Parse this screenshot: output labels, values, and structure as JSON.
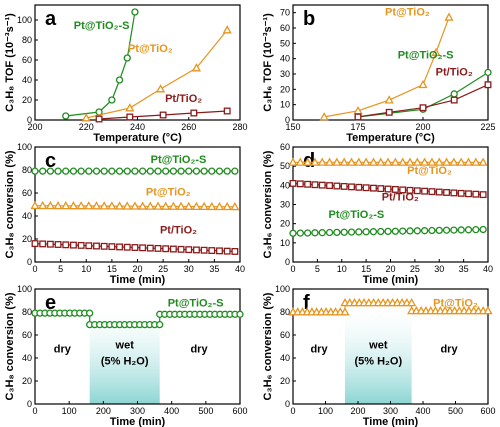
{
  "chart_data": [
    {
      "id": "a",
      "type": "line",
      "letter": "a",
      "xlabel": "Temperature (°C)",
      "ylabel": "C₃H₈ TOF (10⁻³s⁻¹)",
      "xlim": [
        200,
        280
      ],
      "ylim": [
        0,
        115
      ],
      "xticks": [
        200,
        220,
        240,
        260,
        280
      ],
      "yticks": [
        0,
        20,
        40,
        60,
        80,
        100
      ],
      "series": [
        {
          "name": "Pt@TiO₂-S",
          "color": "#1e8c1e",
          "marker": "circle",
          "x": [
            212,
            225,
            230,
            233,
            236,
            239
          ],
          "y": [
            4,
            8,
            20,
            40,
            62,
            108
          ]
        },
        {
          "name": "Pt@TiO₂",
          "color": "#e69520",
          "marker": "triangle",
          "x": [
            220,
            237,
            249,
            263,
            275
          ],
          "y": [
            2,
            12,
            31,
            52,
            90
          ]
        },
        {
          "name": "Pt/TiO₂",
          "color": "#8b1a1a",
          "marker": "square",
          "x": [
            225,
            237,
            250,
            262,
            275
          ],
          "y": [
            1,
            3,
            5,
            7,
            9
          ]
        }
      ],
      "labels": [
        "Pt@TiO₂-S",
        "Pt@TiO₂",
        "Pt/TiO₂"
      ]
    },
    {
      "id": "b",
      "type": "line",
      "letter": "b",
      "xlabel": "Temperature (°C)",
      "ylabel": "C₃H₆ TOF (10⁻³s⁻¹)",
      "xlim": [
        150,
        225
      ],
      "ylim": [
        0,
        75
      ],
      "xticks": [
        150,
        175,
        200,
        225
      ],
      "yticks": [
        0,
        10,
        20,
        30,
        40,
        50,
        60,
        70
      ],
      "series": [
        {
          "name": "Pt@TiO₂",
          "color": "#e69520",
          "marker": "triangle",
          "x": [
            162,
            175,
            187,
            200,
            205,
            210
          ],
          "y": [
            2,
            6,
            13,
            23,
            44,
            67
          ]
        },
        {
          "name": "Pt@TiO₂-S",
          "color": "#1e8c1e",
          "marker": "circle",
          "x": [
            175,
            200,
            212,
            225
          ],
          "y": [
            2,
            7,
            17,
            31
          ]
        },
        {
          "name": "Pt/TiO₂",
          "color": "#8b1a1a",
          "marker": "square",
          "x": [
            175,
            187,
            200,
            212,
            225
          ],
          "y": [
            2,
            5,
            8,
            13,
            23
          ]
        }
      ],
      "labels": [
        "Pt@TiO₂",
        "Pt@TiO₂-S",
        "Pt/TiO₂"
      ]
    },
    {
      "id": "c",
      "type": "line",
      "letter": "c",
      "xlabel": "Time (min)",
      "ylabel": "C₃H₈ conversion (%)",
      "xlim": [
        0,
        40
      ],
      "ylim": [
        0,
        100
      ],
      "xticks": [
        0,
        5,
        10,
        15,
        20,
        25,
        30,
        35,
        40
      ],
      "yticks": [
        0,
        20,
        40,
        60,
        80,
        100
      ],
      "series": [
        {
          "name": "Pt@TiO₂-S",
          "color": "#1e8c1e",
          "marker": "circle",
          "start": 79,
          "end": 79
        },
        {
          "name": "Pt@TiO₂",
          "color": "#e69520",
          "marker": "triangle",
          "start": 49,
          "end": 48
        },
        {
          "name": "Pt/TiO₂",
          "color": "#8b1a1a",
          "marker": "square",
          "start": 16,
          "end": 9
        }
      ],
      "labels": [
        "Pt@TiO₂-S",
        "Pt@TiO₂",
        "Pt/TiO₂"
      ]
    },
    {
      "id": "d",
      "type": "line",
      "letter": "d",
      "xlabel": "Time (min)",
      "ylabel": "C₃H₆ conversion (%)",
      "xlim": [
        0,
        40
      ],
      "ylim": [
        0,
        60
      ],
      "xticks": [
        0,
        5,
        10,
        15,
        20,
        25,
        30,
        35,
        40
      ],
      "yticks": [
        0,
        10,
        20,
        30,
        40,
        50,
        60
      ],
      "series": [
        {
          "name": "Pt@TiO₂",
          "color": "#e69520",
          "marker": "triangle",
          "start": 52,
          "end": 52
        },
        {
          "name": "Pt/TiO₂",
          "color": "#8b1a1a",
          "marker": "square",
          "start": 41,
          "end": 35
        },
        {
          "name": "Pt@TiO₂-S",
          "color": "#1e8c1e",
          "marker": "circle",
          "start": 15,
          "end": 17
        }
      ],
      "labels": [
        "Pt@TiO₂",
        "Pt/TiO₂",
        "Pt@TiO₂-S"
      ]
    },
    {
      "id": "e",
      "type": "line",
      "letter": "e",
      "xlabel": "Time (min)",
      "ylabel": "C₃H₈ conversion (%)",
      "xlim": [
        0,
        600
      ],
      "ylim": [
        0,
        100
      ],
      "xticks": [
        0,
        100,
        200,
        300,
        400,
        500,
        600
      ],
      "yticks": [
        0,
        20,
        40,
        60,
        80,
        100
      ],
      "wet_range": [
        160,
        365
      ],
      "series": [
        {
          "name": "Pt@TiO₂-S",
          "color": "#1e8c1e",
          "marker": "circle",
          "segments": [
            [
              0,
              160,
              79
            ],
            [
              160,
              365,
              69
            ],
            [
              365,
              600,
              78
            ]
          ]
        }
      ],
      "labels": [
        "Pt@TiO₂-S"
      ],
      "regions": {
        "dry_left": "dry",
        "wet": "wet",
        "wet_sub": "(5% H₂O)",
        "dry_right": "dry"
      }
    },
    {
      "id": "f",
      "type": "line",
      "letter": "f",
      "xlabel": "Time (min)",
      "ylabel": "C₃H₆ conversion (%)",
      "xlim": [
        0,
        600
      ],
      "ylim": [
        0,
        100
      ],
      "xticks": [
        0,
        100,
        200,
        300,
        400,
        500,
        600
      ],
      "yticks": [
        0,
        20,
        40,
        60,
        80,
        100
      ],
      "wet_range": [
        160,
        365
      ],
      "series": [
        {
          "name": "Pt@TiO₂",
          "color": "#e69520",
          "marker": "triangle",
          "segments": [
            [
              0,
              160,
              80
            ],
            [
              160,
              365,
              88
            ],
            [
              365,
              600,
              81
            ]
          ]
        }
      ],
      "labels": [
        "Pt@TiO₂"
      ],
      "regions": {
        "dry_left": "dry",
        "wet": "wet",
        "wet_sub": "(5% H₂O)",
        "dry_right": "dry"
      }
    }
  ]
}
